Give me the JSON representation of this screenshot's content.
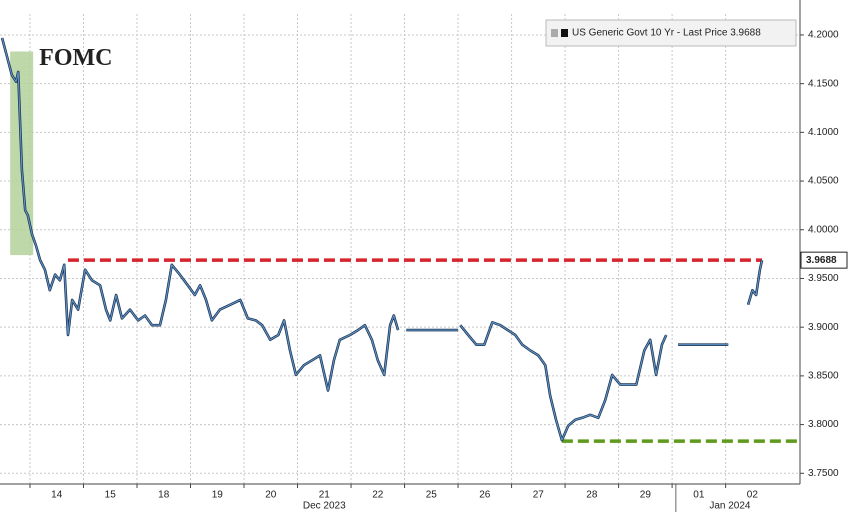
{
  "chart_data": {
    "type": "line",
    "x": [
      -0.52,
      -0.41,
      -0.34,
      -0.26,
      -0.22,
      -0.19,
      -0.15,
      -0.09,
      -0.04,
      0.04,
      0.11,
      0.19,
      0.28,
      0.37,
      0.47,
      0.56,
      0.64,
      0.71,
      0.79,
      0.9,
      1.03,
      1.16,
      1.31,
      1.42,
      1.5,
      1.61,
      1.72,
      1.87,
      2.02,
      2.15,
      2.28,
      2.43,
      2.54,
      2.65,
      2.8,
      2.95,
      3.08,
      3.18,
      3.29,
      3.4,
      3.55,
      3.74,
      3.93,
      4.07,
      4.22,
      4.34,
      4.49,
      4.64,
      4.75,
      4.86,
      4.97,
      5.12,
      5.27,
      5.42,
      5.57,
      5.68,
      5.79,
      5.98,
      6.13,
      6.26,
      6.39,
      6.5,
      6.62,
      6.73,
      6.8,
      6.88,
      6.95,
      7.03,
      8.0,
      8.02,
      8.04,
      8.19,
      8.34,
      8.49,
      8.64,
      8.79,
      8.93,
      9.07,
      9.2,
      9.35,
      9.5,
      9.63,
      9.72,
      9.83,
      9.94,
      10.06,
      10.19,
      10.32,
      10.47,
      10.62,
      10.75,
      10.88,
      11.03,
      11.18,
      11.33,
      11.48,
      11.59,
      11.7,
      11.81,
      11.89,
      12.0,
      12.11,
      13.05,
      13.2,
      13.42,
      13.5,
      13.57,
      13.64,
      13.68
    ],
    "series": [
      {
        "name": "US Generic Govt 10 Yr - Last Price 3.9688",
        "color": "#2e5f94",
        "values": [
          4.197,
          4.174,
          4.159,
          4.152,
          4.162,
          4.118,
          4.061,
          4.02,
          4.015,
          3.995,
          3.984,
          3.969,
          3.959,
          3.938,
          3.954,
          3.948,
          3.964,
          3.892,
          3.928,
          3.918,
          3.959,
          3.948,
          3.943,
          3.918,
          3.907,
          3.933,
          3.909,
          3.918,
          3.907,
          3.912,
          3.902,
          3.902,
          3.928,
          3.964,
          3.954,
          3.943,
          3.933,
          3.943,
          3.928,
          3.907,
          3.918,
          3.923,
          3.928,
          3.909,
          3.907,
          3.902,
          3.887,
          3.892,
          3.907,
          3.876,
          3.851,
          3.861,
          3.866,
          3.871,
          3.835,
          3.866,
          3.887,
          3.892,
          3.897,
          3.902,
          3.887,
          3.866,
          3.851,
          3.902,
          3.912,
          3.897,
          null,
          3.897,
          3.897,
          null,
          3.902,
          3.892,
          3.882,
          3.882,
          3.905,
          3.902,
          3.897,
          3.892,
          3.882,
          3.876,
          3.871,
          3.861,
          3.83,
          3.805,
          3.784,
          3.799,
          3.805,
          3.807,
          3.81,
          3.807,
          3.825,
          3.851,
          3.841,
          3.841,
          3.841,
          3.876,
          3.887,
          3.851,
          3.882,
          3.892,
          null,
          3.882,
          3.882,
          null,
          3.923,
          3.938,
          3.933,
          3.959,
          3.9688
        ]
      }
    ],
    "xlim": [
      -0.56,
      14.39
    ],
    "xticks": [
      {
        "value": 0,
        "label": "14"
      },
      {
        "value": 1,
        "label": "15"
      },
      {
        "value": 2,
        "label": "18"
      },
      {
        "value": 3,
        "label": "19"
      },
      {
        "value": 4,
        "label": "20"
      },
      {
        "value": 5,
        "label": "21"
      },
      {
        "value": 6,
        "label": "22"
      },
      {
        "value": 7,
        "label": "25"
      },
      {
        "value": 8,
        "label": "26"
      },
      {
        "value": 9,
        "label": "27"
      },
      {
        "value": 10,
        "label": "28"
      },
      {
        "value": 11,
        "label": "29"
      },
      {
        "value": 12,
        "label": "01"
      },
      {
        "value": 13,
        "label": "02"
      }
    ],
    "x_group_labels": [
      {
        "value": 5.0,
        "label": "Dec 2023"
      },
      {
        "value": 12.58,
        "label": "Jan 2024"
      }
    ],
    "year_divider": 12.07,
    "ylim": [
      3.739,
      4.2215
    ],
    "yticks": [
      {
        "value": 3.75,
        "label": "3.7500"
      },
      {
        "value": 3.8,
        "label": "3.8000"
      },
      {
        "value": 3.85,
        "label": "3.8500"
      },
      {
        "value": 3.9,
        "label": "3.9000"
      },
      {
        "value": 3.95,
        "label": "3.9500"
      },
      {
        "value": 4.0,
        "label": "4.0000"
      },
      {
        "value": 4.05,
        "label": "4.0500"
      },
      {
        "value": 4.1,
        "label": "4.1000"
      },
      {
        "value": 4.15,
        "label": "4.1500"
      },
      {
        "value": 4.2,
        "label": "4.2000"
      }
    ],
    "grid": true,
    "last_price": {
      "value": 3.9688,
      "label": "3.9688"
    },
    "reference_lines": [
      {
        "value": 3.9688,
        "x": [
          0.71,
          13.68
        ],
        "color": "#d9232e"
      },
      {
        "value": 3.783,
        "x": [
          9.94,
          14.39
        ],
        "color": "#5e9a1e"
      }
    ],
    "annotations": [
      {
        "text": "FOMC",
        "x": [
          -0.37,
          0.06
        ],
        "y": [
          3.974,
          4.183
        ],
        "color": "#b3d19a",
        "text_color": "#5c8a2a"
      }
    ],
    "legend": "top-right"
  }
}
